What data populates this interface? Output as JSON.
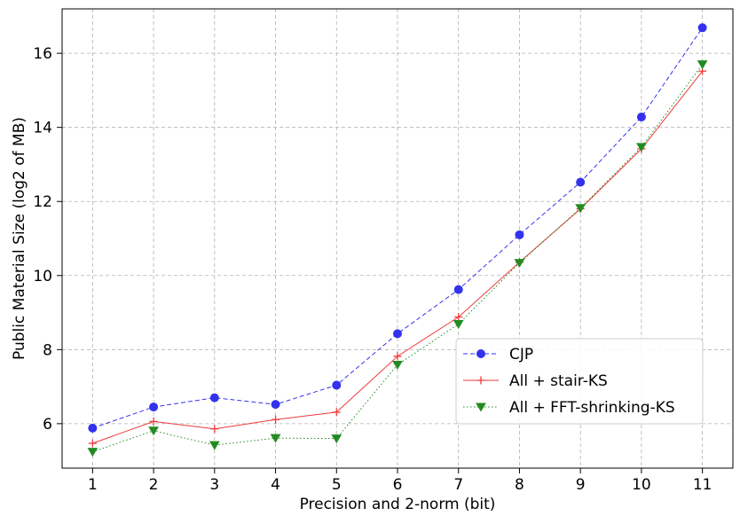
{
  "chart_data": {
    "type": "line",
    "title": "",
    "xlabel": "Precision and 2-norm (bit)",
    "ylabel": "Public Material Size (log2 of MB)",
    "x": [
      1,
      2,
      3,
      4,
      5,
      6,
      7,
      8,
      9,
      10,
      11
    ],
    "xlim": [
      0.5,
      11.5
    ],
    "ylim": [
      4.8,
      17.2
    ],
    "xticks": [
      1,
      2,
      3,
      4,
      5,
      6,
      7,
      8,
      9,
      10,
      11
    ],
    "yticks": [
      6,
      8,
      10,
      12,
      14,
      16
    ],
    "grid": true,
    "legend_position": "center-right",
    "series": [
      {
        "name": "CJP",
        "color": "#3333ee",
        "marker": "circle",
        "line_style": "dashed",
        "values": [
          5.88,
          6.45,
          6.7,
          6.52,
          7.04,
          8.43,
          9.62,
          11.1,
          12.52,
          14.28,
          16.69
        ]
      },
      {
        "name": "All + stair-KS",
        "color": "#ee3b3b",
        "marker": "plus",
        "line_style": "solid",
        "values": [
          5.47,
          6.06,
          5.86,
          6.11,
          6.31,
          7.82,
          8.88,
          10.36,
          11.8,
          13.42,
          15.52
        ]
      },
      {
        "name": "All + FFT-shrinking-KS",
        "color": "#228b22",
        "marker": "triangle-down",
        "line_style": "dotted",
        "values": [
          5.24,
          5.81,
          5.42,
          5.61,
          5.6,
          7.59,
          8.69,
          10.34,
          11.82,
          13.47,
          15.7
        ]
      }
    ]
  }
}
